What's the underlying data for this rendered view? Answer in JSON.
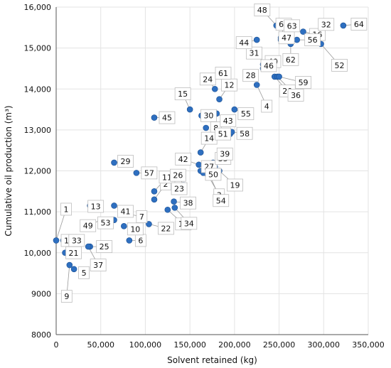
{
  "chart_data": {
    "type": "scatter",
    "xlabel": "Solvent retained (kg)",
    "ylabel": "Cumulative oil production (m³)",
    "xlim": [
      0,
      350000
    ],
    "ylim": [
      8000,
      16000
    ],
    "xticks": [
      0,
      50000,
      100000,
      150000,
      200000,
      250000,
      300000,
      350000
    ],
    "xtick_labels": [
      "0",
      "50,000",
      "100,000",
      "150,000",
      "200,000",
      "250,000",
      "300,000",
      "350,000"
    ],
    "yticks": [
      8000,
      9000,
      10000,
      11000,
      12000,
      13000,
      14000,
      15000,
      16000
    ],
    "ytick_labels": [
      "8000",
      "9000",
      "10,000",
      "11,000",
      "12,000",
      "13,000",
      "14,000",
      "15,000",
      "16,000"
    ],
    "grid": true,
    "marker_color": "#2e6fc0",
    "points": [
      {
        "label": "1",
        "x": 0,
        "y": 10300
      },
      {
        "label": "2",
        "x": 110000,
        "y": 11300
      },
      {
        "label": "3",
        "x": 170000,
        "y": 11900
      },
      {
        "label": "4",
        "x": 225000,
        "y": 14100
      },
      {
        "label": "5",
        "x": 20000,
        "y": 9600
      },
      {
        "label": "6",
        "x": 82000,
        "y": 10300
      },
      {
        "label": "7",
        "x": 80000,
        "y": 10950
      },
      {
        "label": "8",
        "x": 168000,
        "y": 13050
      },
      {
        "label": "9",
        "x": 15000,
        "y": 9700
      },
      {
        "label": "10",
        "x": 76000,
        "y": 10650
      },
      {
        "label": "11",
        "x": 110000,
        "y": 11500
      },
      {
        "label": "12",
        "x": 183000,
        "y": 13750
      },
      {
        "label": "13",
        "x": 38000,
        "y": 11150
      },
      {
        "label": "14",
        "x": 162000,
        "y": 12450
      },
      {
        "label": "15",
        "x": 150000,
        "y": 13500
      },
      {
        "label": "16",
        "x": 277000,
        "y": 15400
      },
      {
        "label": "17",
        "x": 8000,
        "y": 10300
      },
      {
        "label": "18",
        "x": 125000,
        "y": 11050
      },
      {
        "label": "19",
        "x": 183000,
        "y": 12000
      },
      {
        "label": "20",
        "x": 245000,
        "y": 14300
      },
      {
        "label": "21",
        "x": 10000,
        "y": 10000
      },
      {
        "label": "22",
        "x": 104000,
        "y": 10700
      },
      {
        "label": "23",
        "x": 130000,
        "y": 11600
      },
      {
        "label": "24",
        "x": 178000,
        "y": 14000
      },
      {
        "label": "25",
        "x": 38000,
        "y": 10150
      },
      {
        "label": "26",
        "x": 143000,
        "y": 11650
      },
      {
        "label": "27",
        "x": 162000,
        "y": 12000
      },
      {
        "label": "28",
        "x": 215000,
        "y": 14400
      },
      {
        "label": "29",
        "x": 65000,
        "y": 12200
      },
      {
        "label": "30",
        "x": 163000,
        "y": 13350
      },
      {
        "label": "31",
        "x": 238000,
        "y": 14600
      },
      {
        "label": "32",
        "x": 290000,
        "y": 15300
      },
      {
        "label": "33",
        "x": 15000,
        "y": 10300
      },
      {
        "label": "34",
        "x": 133000,
        "y": 11100
      },
      {
        "label": "35",
        "x": 176000,
        "y": 12200
      },
      {
        "label": "36",
        "x": 248000,
        "y": 14300
      },
      {
        "label": "37",
        "x": 36000,
        "y": 10150
      },
      {
        "label": "38",
        "x": 132000,
        "y": 11250
      },
      {
        "label": "39",
        "x": 178000,
        "y": 12100
      },
      {
        "label": "40",
        "x": 232000,
        "y": 14600
      },
      {
        "label": "41",
        "x": 65000,
        "y": 11150
      },
      {
        "label": "42",
        "x": 160000,
        "y": 12150
      },
      {
        "label": "43",
        "x": 180000,
        "y": 13400
      },
      {
        "label": "44",
        "x": 225000,
        "y": 15200
      },
      {
        "label": "45",
        "x": 110000,
        "y": 13300
      },
      {
        "label": "46",
        "x": 232000,
        "y": 14500
      },
      {
        "label": "47",
        "x": 252000,
        "y": 15250
      },
      {
        "label": "48",
        "x": 247000,
        "y": 15550
      },
      {
        "label": "49",
        "x": 50000,
        "y": 10800
      },
      {
        "label": "50",
        "x": 165000,
        "y": 11950
      },
      {
        "label": "51",
        "x": 195000,
        "y": 12900
      },
      {
        "label": "52",
        "x": 297000,
        "y": 15100
      },
      {
        "label": "53",
        "x": 65000,
        "y": 10800
      },
      {
        "label": "54",
        "x": 172000,
        "y": 11900
      },
      {
        "label": "55",
        "x": 200000,
        "y": 13500
      },
      {
        "label": "56",
        "x": 270000,
        "y": 15200
      },
      {
        "label": "57",
        "x": 90000,
        "y": 11950
      },
      {
        "label": "58",
        "x": 197000,
        "y": 12950
      },
      {
        "label": "59",
        "x": 250000,
        "y": 14300
      },
      {
        "label": "60",
        "x": 252000,
        "y": 15200
      },
      {
        "label": "61",
        "x": 173000,
        "y": 14250
      },
      {
        "label": "62",
        "x": 263000,
        "y": 15100
      },
      {
        "label": "63",
        "x": 258000,
        "y": 15300
      },
      {
        "label": "64",
        "x": 322000,
        "y": 15550
      }
    ]
  }
}
